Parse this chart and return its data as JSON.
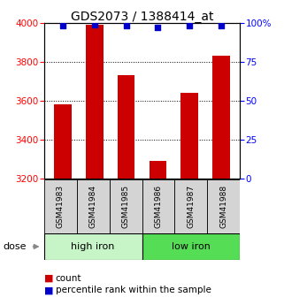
{
  "title": "GDS2073 / 1388414_at",
  "samples": [
    "GSM41983",
    "GSM41984",
    "GSM41985",
    "GSM41986",
    "GSM41987",
    "GSM41988"
  ],
  "bar_values": [
    3580,
    3990,
    3730,
    3290,
    3640,
    3830
  ],
  "percentile_values": [
    98,
    99,
    98,
    97,
    98,
    98
  ],
  "bar_color": "#cc0000",
  "dot_color": "#0000cc",
  "ylim_left": [
    3200,
    4000
  ],
  "ylim_right": [
    0,
    100
  ],
  "yticks_left": [
    3200,
    3400,
    3600,
    3800,
    4000
  ],
  "yticks_right": [
    0,
    25,
    50,
    75,
    100
  ],
  "ytick_labels_right": [
    "0",
    "25",
    "50",
    "75",
    "100%"
  ],
  "group1_label": "high iron",
  "group2_label": "low iron",
  "group1_color": "#c8f5c8",
  "group2_color": "#55dd55",
  "dose_label": "dose",
  "legend_count": "count",
  "legend_pct": "percentile rank within the sample",
  "title_fontsize": 10,
  "tick_fontsize": 7.5,
  "sample_fontsize": 6.5,
  "group_fontsize": 8,
  "legend_fontsize": 7.5
}
